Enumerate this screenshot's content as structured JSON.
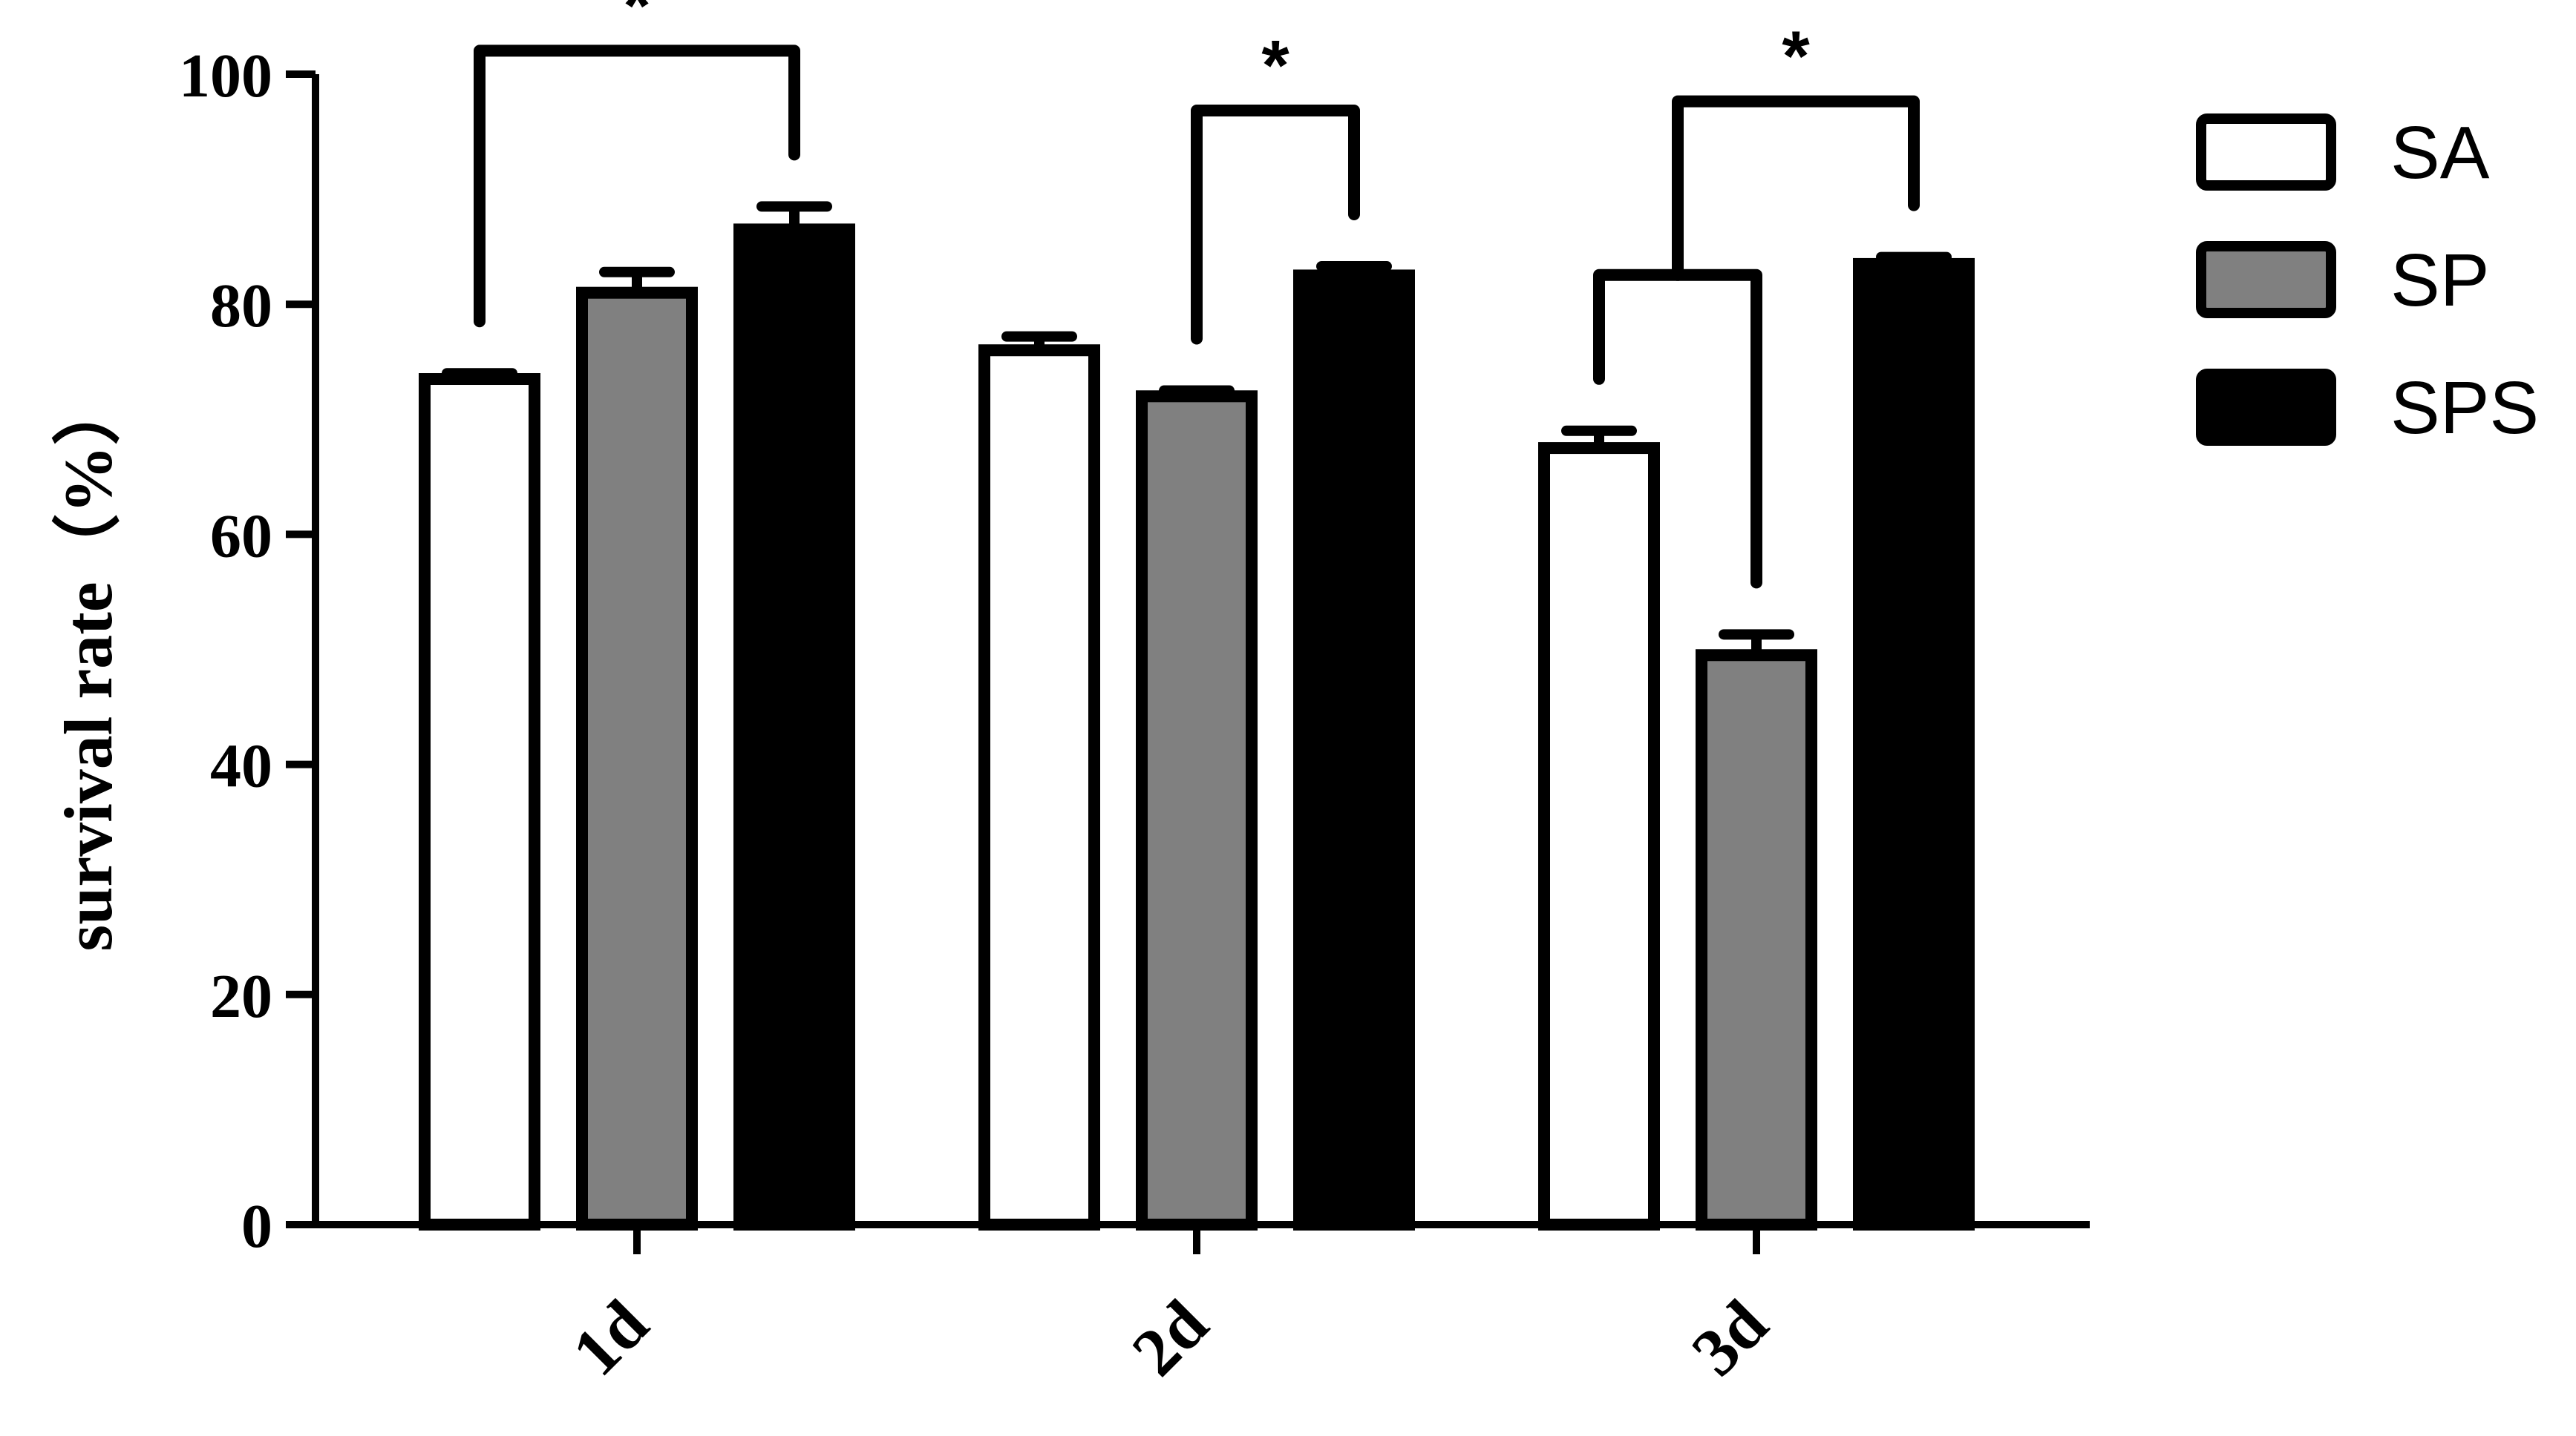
{
  "chart_data": {
    "type": "bar",
    "ylabel": "survival rate（%）",
    "xlabel": "",
    "ylim": [
      0,
      100
    ],
    "yticks": [
      0,
      20,
      40,
      60,
      80,
      100
    ],
    "categories": [
      "1d",
      "2d",
      "3d"
    ],
    "series": [
      {
        "name": "SA",
        "color": "#ffffff",
        "values": [
          73.5,
          76,
          67.5
        ],
        "errors": [
          0.5,
          1.2,
          1.5
        ]
      },
      {
        "name": "SP",
        "color": "#808080",
        "values": [
          81,
          72,
          49.5
        ],
        "errors": [
          1.8,
          0.5,
          1.8
        ]
      },
      {
        "name": "SPS",
        "color": "#000000",
        "values": [
          86.5,
          82.5,
          83.5
        ],
        "errors": [
          2.0,
          0.8,
          0.6
        ]
      }
    ],
    "legend": {
      "position": "top-right"
    },
    "grid": false,
    "significance": [
      {
        "category": "1d",
        "from_series": "SA",
        "to_series": "SPS",
        "label": "*"
      },
      {
        "category": "2d",
        "from_series": "SP",
        "to_series": "SPS",
        "label": "*"
      },
      {
        "category": "3d",
        "from_series": "SA",
        "to_series": "SP",
        "label": ""
      },
      {
        "category": "3d",
        "from_series": "SA-SP",
        "to_series": "SPS",
        "label": "*"
      }
    ]
  }
}
